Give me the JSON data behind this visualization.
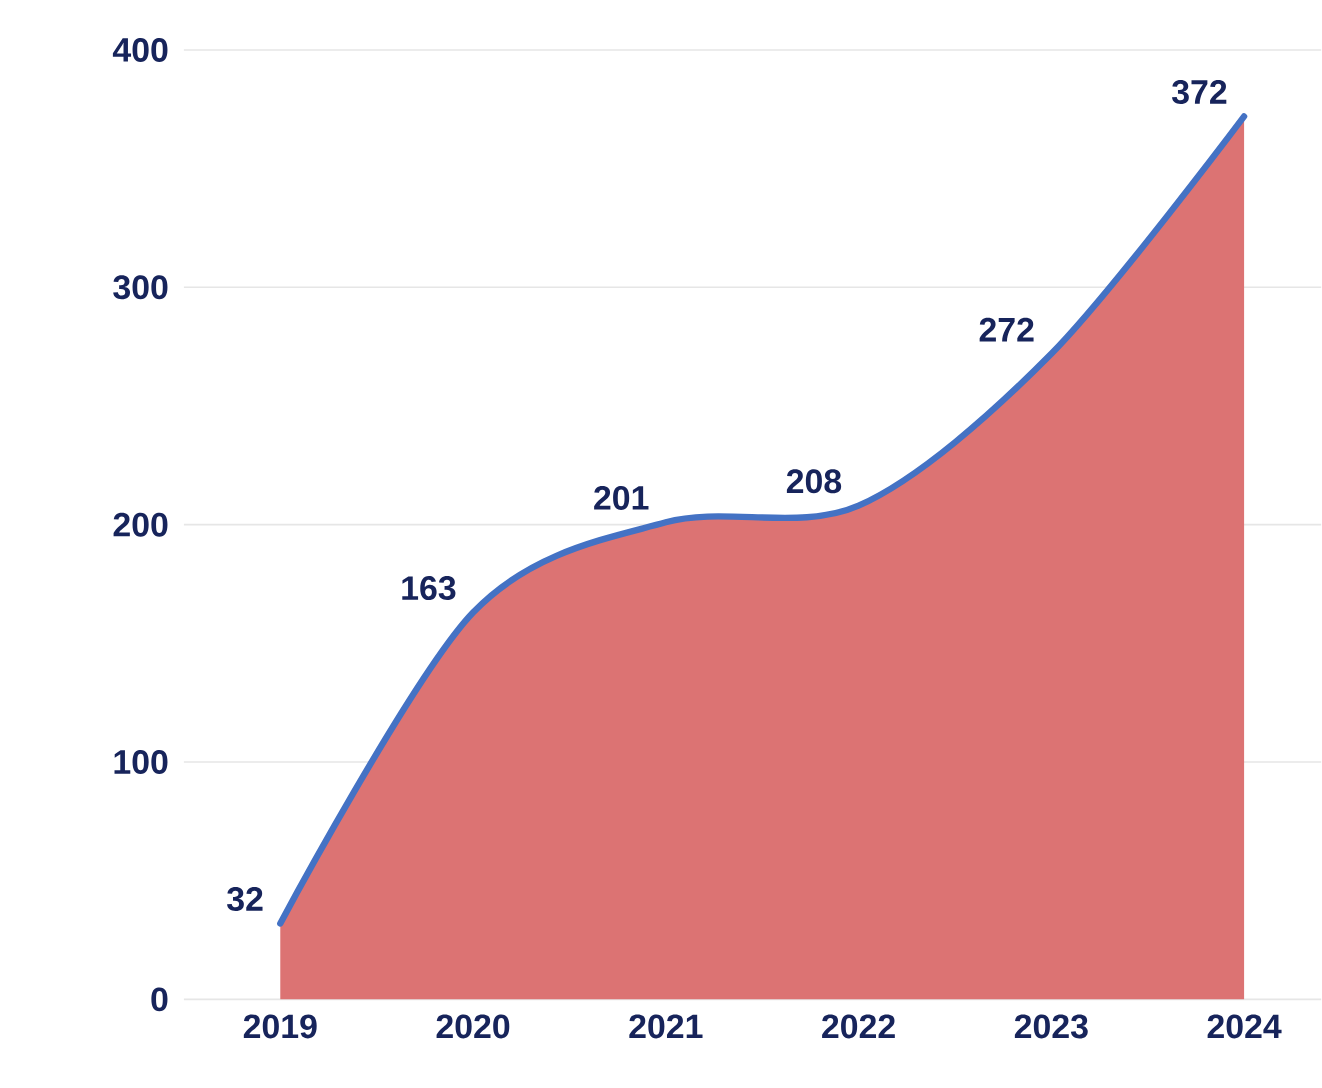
{
  "chart_data": {
    "type": "area",
    "categories": [
      "2019",
      "2020",
      "2021",
      "2022",
      "2023",
      "2024"
    ],
    "series": [
      {
        "color": "#dc7373",
        "values": [
          32,
          163,
          201,
          208,
          272,
          372
        ]
      },
      {
        "type": "line",
        "color": "#4472c4",
        "values": [
          32,
          163,
          201,
          208,
          272,
          372
        ],
        "value_labels": [
          "32",
          "163",
          "201",
          "208",
          "272",
          "372"
        ]
      }
    ],
    "ylim": [
      0,
      400
    ],
    "yticks": [
      0,
      100,
      200,
      300,
      400
    ],
    "grid": "y",
    "marker": "none"
  }
}
